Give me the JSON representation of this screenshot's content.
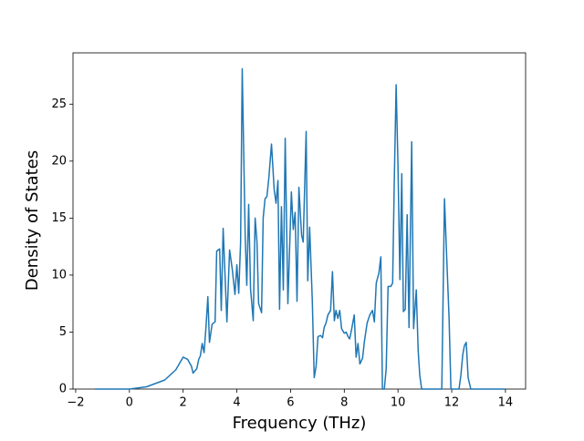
{
  "chart_data": {
    "type": "line",
    "xlabel": "Frequency (THz)",
    "ylabel": "Density of States",
    "color": "#1f77b4",
    "xlim": [
      -2.1,
      14.75
    ],
    "ylim": [
      0,
      29.5
    ],
    "xticks": [
      {
        "value": -2,
        "label": "−2"
      },
      0,
      2,
      4,
      6,
      8,
      10,
      12,
      14
    ],
    "yticks": [
      0,
      5,
      10,
      15,
      20,
      25
    ],
    "x": [
      -1.29,
      0,
      0.64,
      1.32,
      1.73,
      2.0,
      2.17,
      2.31,
      2.37,
      2.51,
      2.58,
      2.64,
      2.71,
      2.78,
      2.85,
      2.92,
      2.98,
      3.08,
      3.19,
      3.25,
      3.36,
      3.42,
      3.49,
      3.63,
      3.73,
      3.83,
      3.93,
      4.0,
      4.07,
      4.14,
      4.2,
      4.31,
      4.37,
      4.44,
      4.51,
      4.61,
      4.68,
      4.75,
      4.81,
      4.92,
      4.98,
      5.05,
      5.12,
      5.19,
      5.29,
      5.39,
      5.46,
      5.53,
      5.59,
      5.66,
      5.73,
      5.8,
      5.9,
      6.03,
      6.1,
      6.17,
      6.24,
      6.31,
      6.41,
      6.47,
      6.58,
      6.64,
      6.71,
      6.81,
      6.88,
      6.95,
      7.02,
      7.12,
      7.19,
      7.25,
      7.32,
      7.39,
      7.49,
      7.56,
      7.63,
      7.69,
      7.76,
      7.83,
      7.9,
      8.0,
      8.07,
      8.14,
      8.2,
      8.27,
      8.37,
      8.44,
      8.51,
      8.58,
      8.68,
      8.75,
      8.85,
      8.95,
      9.05,
      9.12,
      9.19,
      9.29,
      9.36,
      9.42,
      9.49,
      9.56,
      9.63,
      9.73,
      9.8,
      9.86,
      9.93,
      10.0,
      10.07,
      10.14,
      10.2,
      10.27,
      10.34,
      10.41,
      10.51,
      10.58,
      10.68,
      10.75,
      10.81,
      10.88,
      11.63,
      11.73,
      11.83,
      11.9,
      11.97,
      12.27,
      12.34,
      12.41,
      12.47,
      12.54,
      12.61,
      12.71,
      13.97
    ],
    "values": [
      0,
      0,
      0.2,
      0.8,
      1.7,
      2.8,
      2.6,
      2.0,
      1.4,
      1.8,
      2.6,
      2.9,
      4.0,
      3.2,
      5.4,
      8.1,
      4.1,
      5.7,
      5.9,
      12.1,
      12.3,
      6.9,
      14.1,
      5.9,
      12.2,
      10.5,
      8.3,
      10.9,
      8.4,
      12.9,
      28.1,
      13.5,
      9.1,
      16.2,
      8.8,
      6.0,
      15.0,
      12.9,
      7.5,
      6.7,
      15.0,
      16.7,
      16.9,
      18.5,
      21.5,
      17.5,
      16.3,
      18.3,
      7.0,
      16.0,
      8.7,
      22.0,
      7.5,
      17.3,
      14.0,
      15.5,
      7.7,
      17.7,
      13.5,
      12.9,
      22.6,
      9.5,
      14.2,
      7.7,
      1.0,
      2.0,
      4.6,
      4.7,
      4.5,
      5.4,
      5.8,
      6.5,
      6.9,
      10.3,
      6.0,
      6.9,
      6.2,
      6.9,
      5.3,
      4.9,
      5.0,
      4.6,
      4.4,
      5.2,
      6.5,
      2.8,
      4.0,
      2.2,
      2.7,
      4.2,
      5.8,
      6.5,
      6.9,
      5.9,
      9.3,
      10.2,
      11.6,
      0,
      0,
      1.8,
      9.0,
      9.0,
      9.3,
      18.1,
      26.7,
      19.5,
      9.6,
      18.9,
      6.8,
      7.0,
      15.3,
      5.4,
      21.7,
      5.3,
      8.7,
      3.4,
      1.2,
      0,
      0,
      16.7,
      10.5,
      6.3,
      0,
      0,
      1.2,
      3.0,
      3.8,
      4.1,
      1.0,
      0,
      0
    ]
  }
}
